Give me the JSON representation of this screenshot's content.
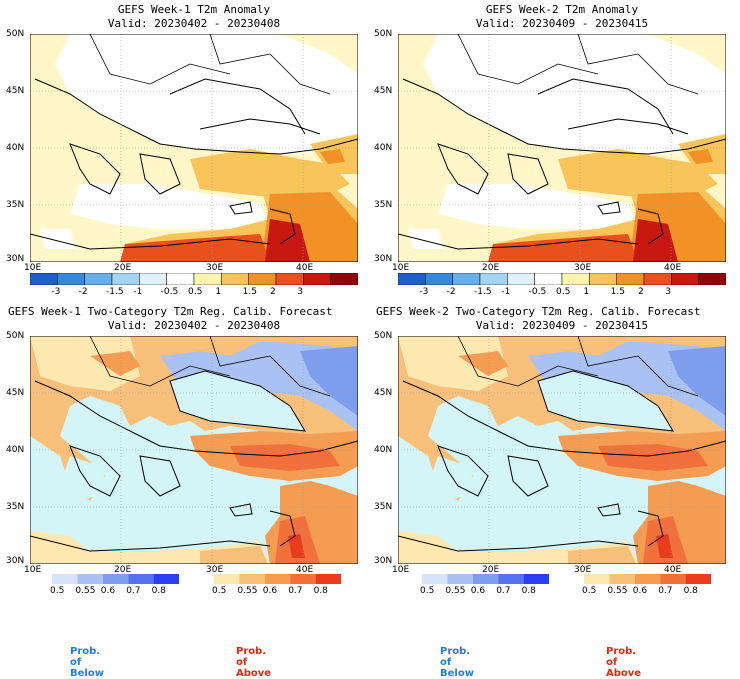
{
  "panels": [
    {
      "id": "w1-anom",
      "title": "GEFS Week-1 T2m Anomaly",
      "valid": "Valid: 20230402 - 20230408"
    },
    {
      "id": "w2-anom",
      "title": "GEFS Week-2 T2m Anomaly",
      "valid": "Valid: 20230409 - 20230415"
    },
    {
      "id": "w1-prob",
      "title": "GEFS Week-1 Two-Category T2m Reg. Calib. Forecast",
      "valid": "Valid: 20230402 - 20230408"
    },
    {
      "id": "w2-prob",
      "title": "GEFS Week-2 Two-Category T2m Reg. Calib. Forecast",
      "valid": "Valid: 20230409 - 20230415"
    }
  ],
  "lat_labels": [
    "50N",
    "45N",
    "40N",
    "35N",
    "30N"
  ],
  "lon_labels": [
    "10E",
    "20E",
    "30E",
    "40E"
  ],
  "anomaly_legend": {
    "labels": [
      "-3",
      "-2",
      "-1.5",
      "-1",
      "-0.5",
      "0.5",
      "1",
      "1.5",
      "2",
      "3"
    ],
    "colors": [
      "#1f5fc9",
      "#3b86dd",
      "#6aaee8",
      "#a4d4f5",
      "#dff1fb",
      "#ffffff",
      "#fff2b3",
      "#f9c45a",
      "#f29126",
      "#e8501e",
      "#c7190f",
      "#8e0606"
    ]
  },
  "prob_legend": {
    "below_labels": [
      "0.5",
      "0.55",
      "0.6",
      "0.7",
      "0.8"
    ],
    "below_colors": [
      "#d6e4fb",
      "#a9c2f3",
      "#7f9ded",
      "#5574eb",
      "#2a3ff2"
    ],
    "above_labels": [
      "0.5",
      "0.55",
      "0.6",
      "0.7",
      "0.8"
    ],
    "above_colors": [
      "#fde9b0",
      "#f9c07b",
      "#f59c53",
      "#f2703b",
      "#ea3b1c"
    ]
  },
  "footer": {
    "below": "Prob. of Below",
    "above": "Prob. of Above"
  },
  "colors": {
    "sea": "#d3f5f8",
    "below_text": "#1f7ee0",
    "above_text": "#e02a10"
  }
}
